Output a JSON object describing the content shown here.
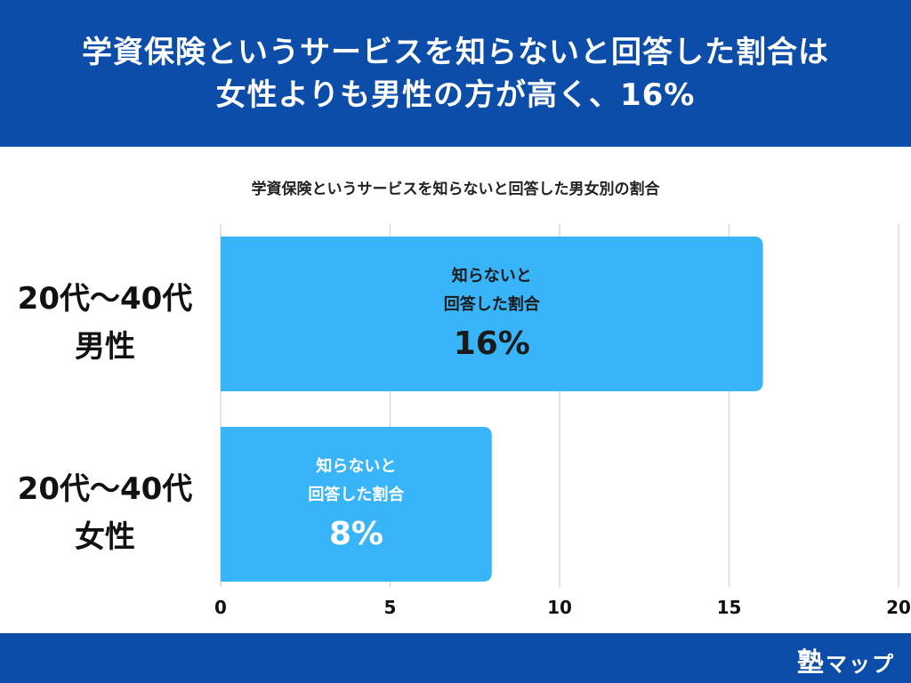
{
  "header": {
    "title_line1": "学資保険というサービスを知らないと回答した割合は",
    "title_line2": "女性よりも男性の方が高く、16%"
  },
  "footer": {
    "logo_main": "塾",
    "logo_sub": "マップ"
  },
  "colors": {
    "header_bg": "#0c4da9",
    "bar": "#38b4f9",
    "grid": "#d9d9d9"
  },
  "chart_data": {
    "type": "bar",
    "orientation": "horizontal",
    "title": "学資保険というサービスを知らないと回答した男女別の割合",
    "categories": [
      [
        "20代〜40代",
        "男性"
      ],
      [
        "20代〜40代",
        "女性"
      ]
    ],
    "values": [
      16,
      8
    ],
    "value_labels": [
      "16%",
      "8%"
    ],
    "bar_label_lines": [
      "知らないと",
      "回答した割合"
    ],
    "xlim": [
      0,
      20
    ],
    "xticks": [
      0,
      5,
      10,
      15,
      20
    ],
    "grid": true
  }
}
